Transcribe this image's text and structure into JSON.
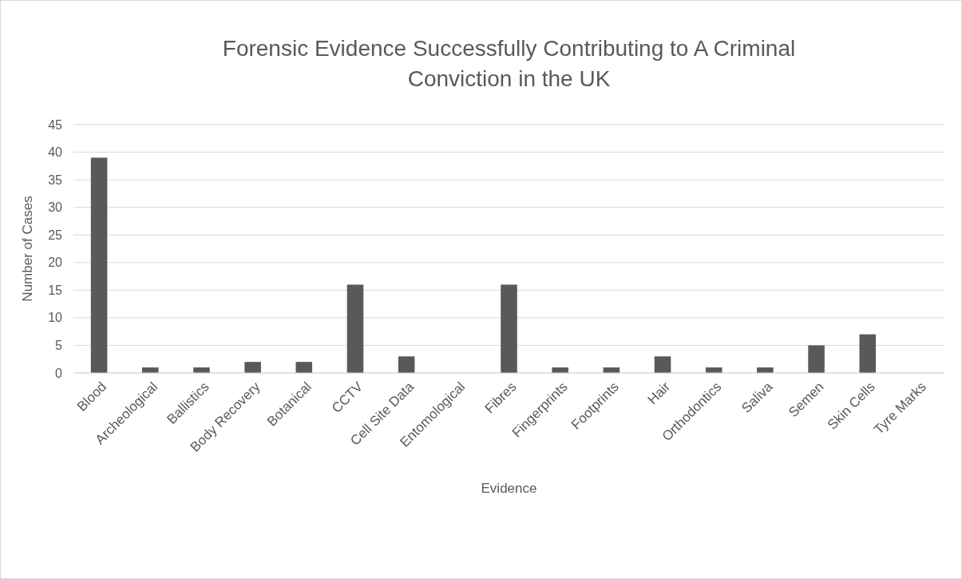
{
  "chart_data": {
    "type": "bar",
    "title": "Forensic Evidence Successfully Contributing to A Criminal Conviction in the UK",
    "xlabel": "Evidence",
    "ylabel": "Number of Cases",
    "categories": [
      "Blood",
      "Archeological",
      "Ballistics",
      "Body Recovery",
      "Botanical",
      "CCTV",
      "Cell Site Data",
      "Entomological",
      "Fibres",
      "Fingerprints",
      "Footprints",
      "Hair",
      "Orthodontics",
      "Saliva",
      "Semen",
      "Skin Cells",
      "Tyre Marks"
    ],
    "values": [
      39,
      1,
      1,
      2,
      2,
      16,
      3,
      0,
      16,
      1,
      1,
      3,
      1,
      1,
      5,
      7,
      0
    ],
    "color": "#595959",
    "ylim": [
      0,
      45
    ],
    "yticks": [
      0,
      5,
      10,
      15,
      20,
      25,
      30,
      35,
      40,
      45
    ],
    "grid": "y"
  }
}
